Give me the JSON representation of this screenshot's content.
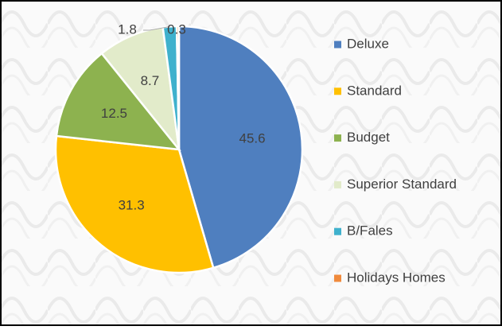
{
  "chart_data": {
    "type": "pie",
    "categories": [
      "Deluxe",
      "Standard",
      "Budget",
      "Superior Standard",
      "B/Fales",
      "Holidays Homes"
    ],
    "values": [
      45.6,
      31.3,
      12.5,
      8.7,
      1.8,
      0.3
    ],
    "colors": [
      "#4f7fbf",
      "#ffc000",
      "#8db24f",
      "#e2ebca",
      "#3fb1cd",
      "#f08a3c"
    ],
    "legend": "right"
  }
}
